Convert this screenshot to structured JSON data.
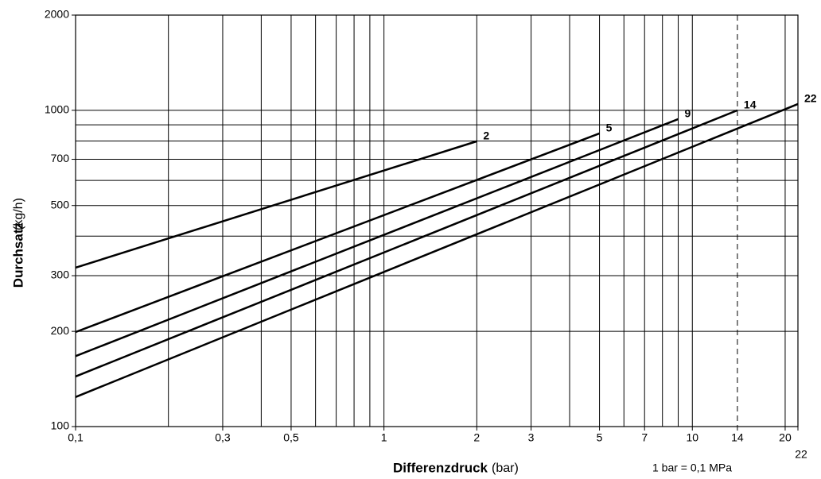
{
  "chart_data": {
    "type": "line",
    "log_x": true,
    "log_y": true,
    "y_label": "Durchsatz",
    "y_unit": "(kg/h)",
    "x_label": "Differenzdruck",
    "x_unit": "(bar)",
    "note": "1 bar = 0,1 MPa",
    "xlim": [
      0.1,
      22
    ],
    "ylim": [
      100,
      2000
    ],
    "xticks": [
      {
        "value": 0.1,
        "label": "0,1"
      },
      {
        "value": 0.3,
        "label": "0,3"
      },
      {
        "value": 0.5,
        "label": "0,5"
      },
      1,
      2,
      3,
      5,
      7,
      10,
      14,
      20,
      22
    ],
    "yticks": [
      100,
      200,
      300,
      500,
      700,
      1000,
      2000
    ],
    "xgrid": [
      0.2,
      0.3,
      0.4,
      0.5,
      0.6,
      0.7,
      0.8,
      0.9,
      1,
      2,
      3,
      4,
      5,
      6,
      7,
      8,
      9,
      10,
      20
    ],
    "ygrid": [
      200,
      300,
      400,
      500,
      600,
      700,
      800,
      900,
      1000
    ],
    "ref_line_x": 14,
    "series": [
      {
        "name": "2",
        "color": "#000000",
        "x": [
          0.1,
          2
        ],
        "values": [
          318,
          798
        ]
      },
      {
        "name": "5",
        "color": "#000000",
        "x": [
          0.1,
          5
        ],
        "values": [
          199,
          845
        ]
      },
      {
        "name": "9",
        "color": "#000000",
        "x": [
          0.1,
          9
        ],
        "values": [
          167,
          938
        ]
      },
      {
        "name": "14",
        "color": "#000000",
        "x": [
          0.1,
          14
        ],
        "values": [
          144,
          1000
        ]
      },
      {
        "name": "22",
        "color": "#000000",
        "x": [
          0.1,
          22
        ],
        "values": [
          124,
          1047
        ]
      }
    ]
  }
}
